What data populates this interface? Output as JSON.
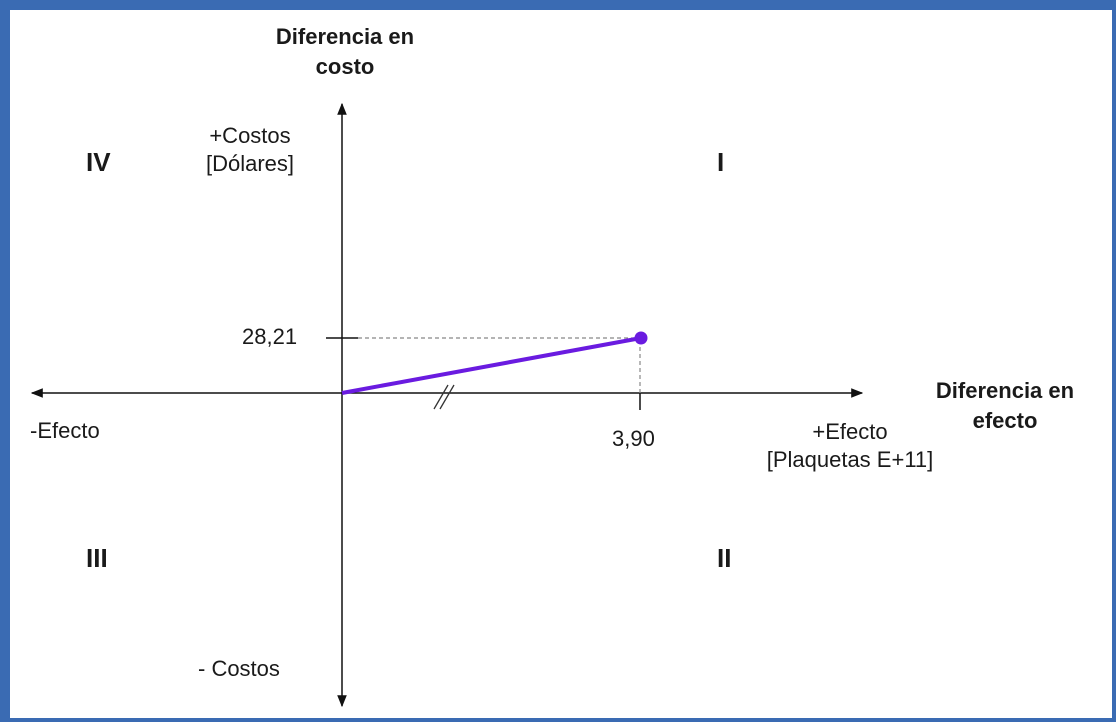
{
  "colors": {
    "frame": "#3a6bb3",
    "axis": "#111111",
    "line": "#6a1be0",
    "guide": "#888888"
  },
  "y_axis_title": "Diferencia en\ncosto",
  "x_axis_title": "Diferencia en\nefecto",
  "y_positive_label": "+Costos\n[Dólares]",
  "y_negative_label": "- Costos",
  "x_positive_label": "+Efecto\n[Plaquetas E+11]",
  "x_negative_label": "-Efecto",
  "quadrants": {
    "I": "I",
    "II": "II",
    "III": "III",
    "IV": "IV"
  },
  "point": {
    "effect_label": "3,90",
    "cost_label": "28,21"
  }
}
